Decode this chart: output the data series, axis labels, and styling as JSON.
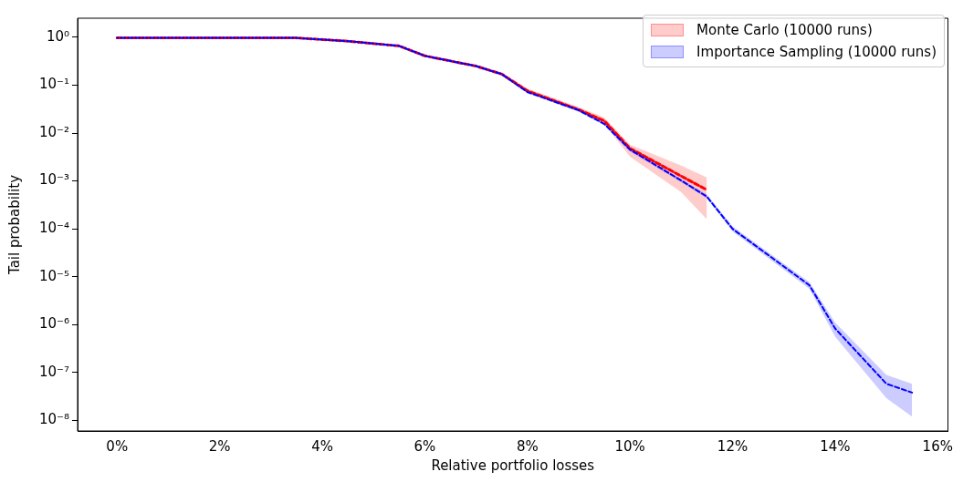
{
  "chart_data": {
    "type": "line",
    "xlabel": "Relative portfolio losses",
    "ylabel": "Tail probability",
    "log": "y",
    "grid": false,
    "legend": "top right",
    "line_style": "dashed",
    "marker": "none",
    "xlim": [
      -0.77,
      16.2
    ],
    "xticks": [
      {
        "value": 0,
        "label": "0%"
      },
      {
        "value": 2,
        "label": "2%"
      },
      {
        "value": 4,
        "label": "4%"
      },
      {
        "value": 6,
        "label": "6%"
      },
      {
        "value": 8,
        "label": "8%"
      },
      {
        "value": 10,
        "label": "10%"
      },
      {
        "value": 12,
        "label": "12%"
      },
      {
        "value": 14,
        "label": "14%"
      },
      {
        "value": 16,
        "label": "16%"
      }
    ],
    "ylim": [
      6e-09,
      2.5
    ],
    "yticks": [
      {
        "value": 1,
        "label": "10⁰"
      },
      {
        "value": 0.1,
        "label": "10⁻¹"
      },
      {
        "value": 0.01,
        "label": "10⁻²"
      },
      {
        "value": 0.001,
        "label": "10⁻³"
      },
      {
        "value": 0.0001,
        "label": "10⁻⁴"
      },
      {
        "value": 1e-05,
        "label": "10⁻⁵"
      },
      {
        "value": 1e-06,
        "label": "10⁻⁶"
      },
      {
        "value": 1e-07,
        "label": "10⁻⁷"
      },
      {
        "value": 1e-08,
        "label": "10⁻⁸"
      }
    ],
    "series": [
      {
        "name": "Monte Carlo (10000 runs)",
        "color": "#ff0000",
        "x": [
          0,
          3.5,
          4.5,
          5.5,
          6,
          7,
          7.5,
          8,
          9,
          9.5,
          10,
          11,
          11.5
        ],
        "values": [
          0.97,
          0.97,
          0.83,
          0.66,
          0.41,
          0.25,
          0.17,
          0.076,
          0.031,
          0.018,
          0.0048,
          0.00126,
          0.00065
        ],
        "lower": [
          0.93,
          0.93,
          0.8,
          0.63,
          0.39,
          0.24,
          0.16,
          0.069,
          0.028,
          0.0155,
          0.0032,
          0.00058,
          0.000158
        ],
        "upper": [
          1,
          1,
          0.86,
          0.69,
          0.43,
          0.265,
          0.185,
          0.085,
          0.035,
          0.021,
          0.0057,
          0.0021,
          0.00118
        ]
      },
      {
        "name": "Importance Sampling (10000 runs)",
        "color": "#0000ff",
        "x": [
          0,
          3.5,
          4.5,
          5.5,
          6,
          7,
          7.5,
          8,
          9,
          9.5,
          10,
          11,
          11.5,
          12,
          13.5,
          14,
          15,
          15.5
        ],
        "values": [
          0.97,
          0.97,
          0.83,
          0.66,
          0.41,
          0.25,
          0.17,
          0.072,
          0.03,
          0.0155,
          0.0045,
          0.00102,
          0.00047,
          0.0001,
          6.6e-06,
          8.3e-07,
          5.8e-08,
          3.8e-08
        ],
        "lower": [
          0.93,
          0.93,
          0.8,
          0.63,
          0.39,
          0.24,
          0.16,
          0.068,
          0.028,
          0.0145,
          0.0041,
          0.00094,
          0.00043,
          8.8e-05,
          5.6e-06,
          5.6e-07,
          2.9e-08,
          1.2e-08
        ],
        "upper": [
          1,
          1,
          0.86,
          0.69,
          0.43,
          0.26,
          0.18,
          0.076,
          0.032,
          0.0165,
          0.0049,
          0.0011,
          0.00052,
          0.000112,
          7.7e-06,
          1.1e-06,
          8.9e-08,
          5.8e-08
        ]
      }
    ]
  }
}
